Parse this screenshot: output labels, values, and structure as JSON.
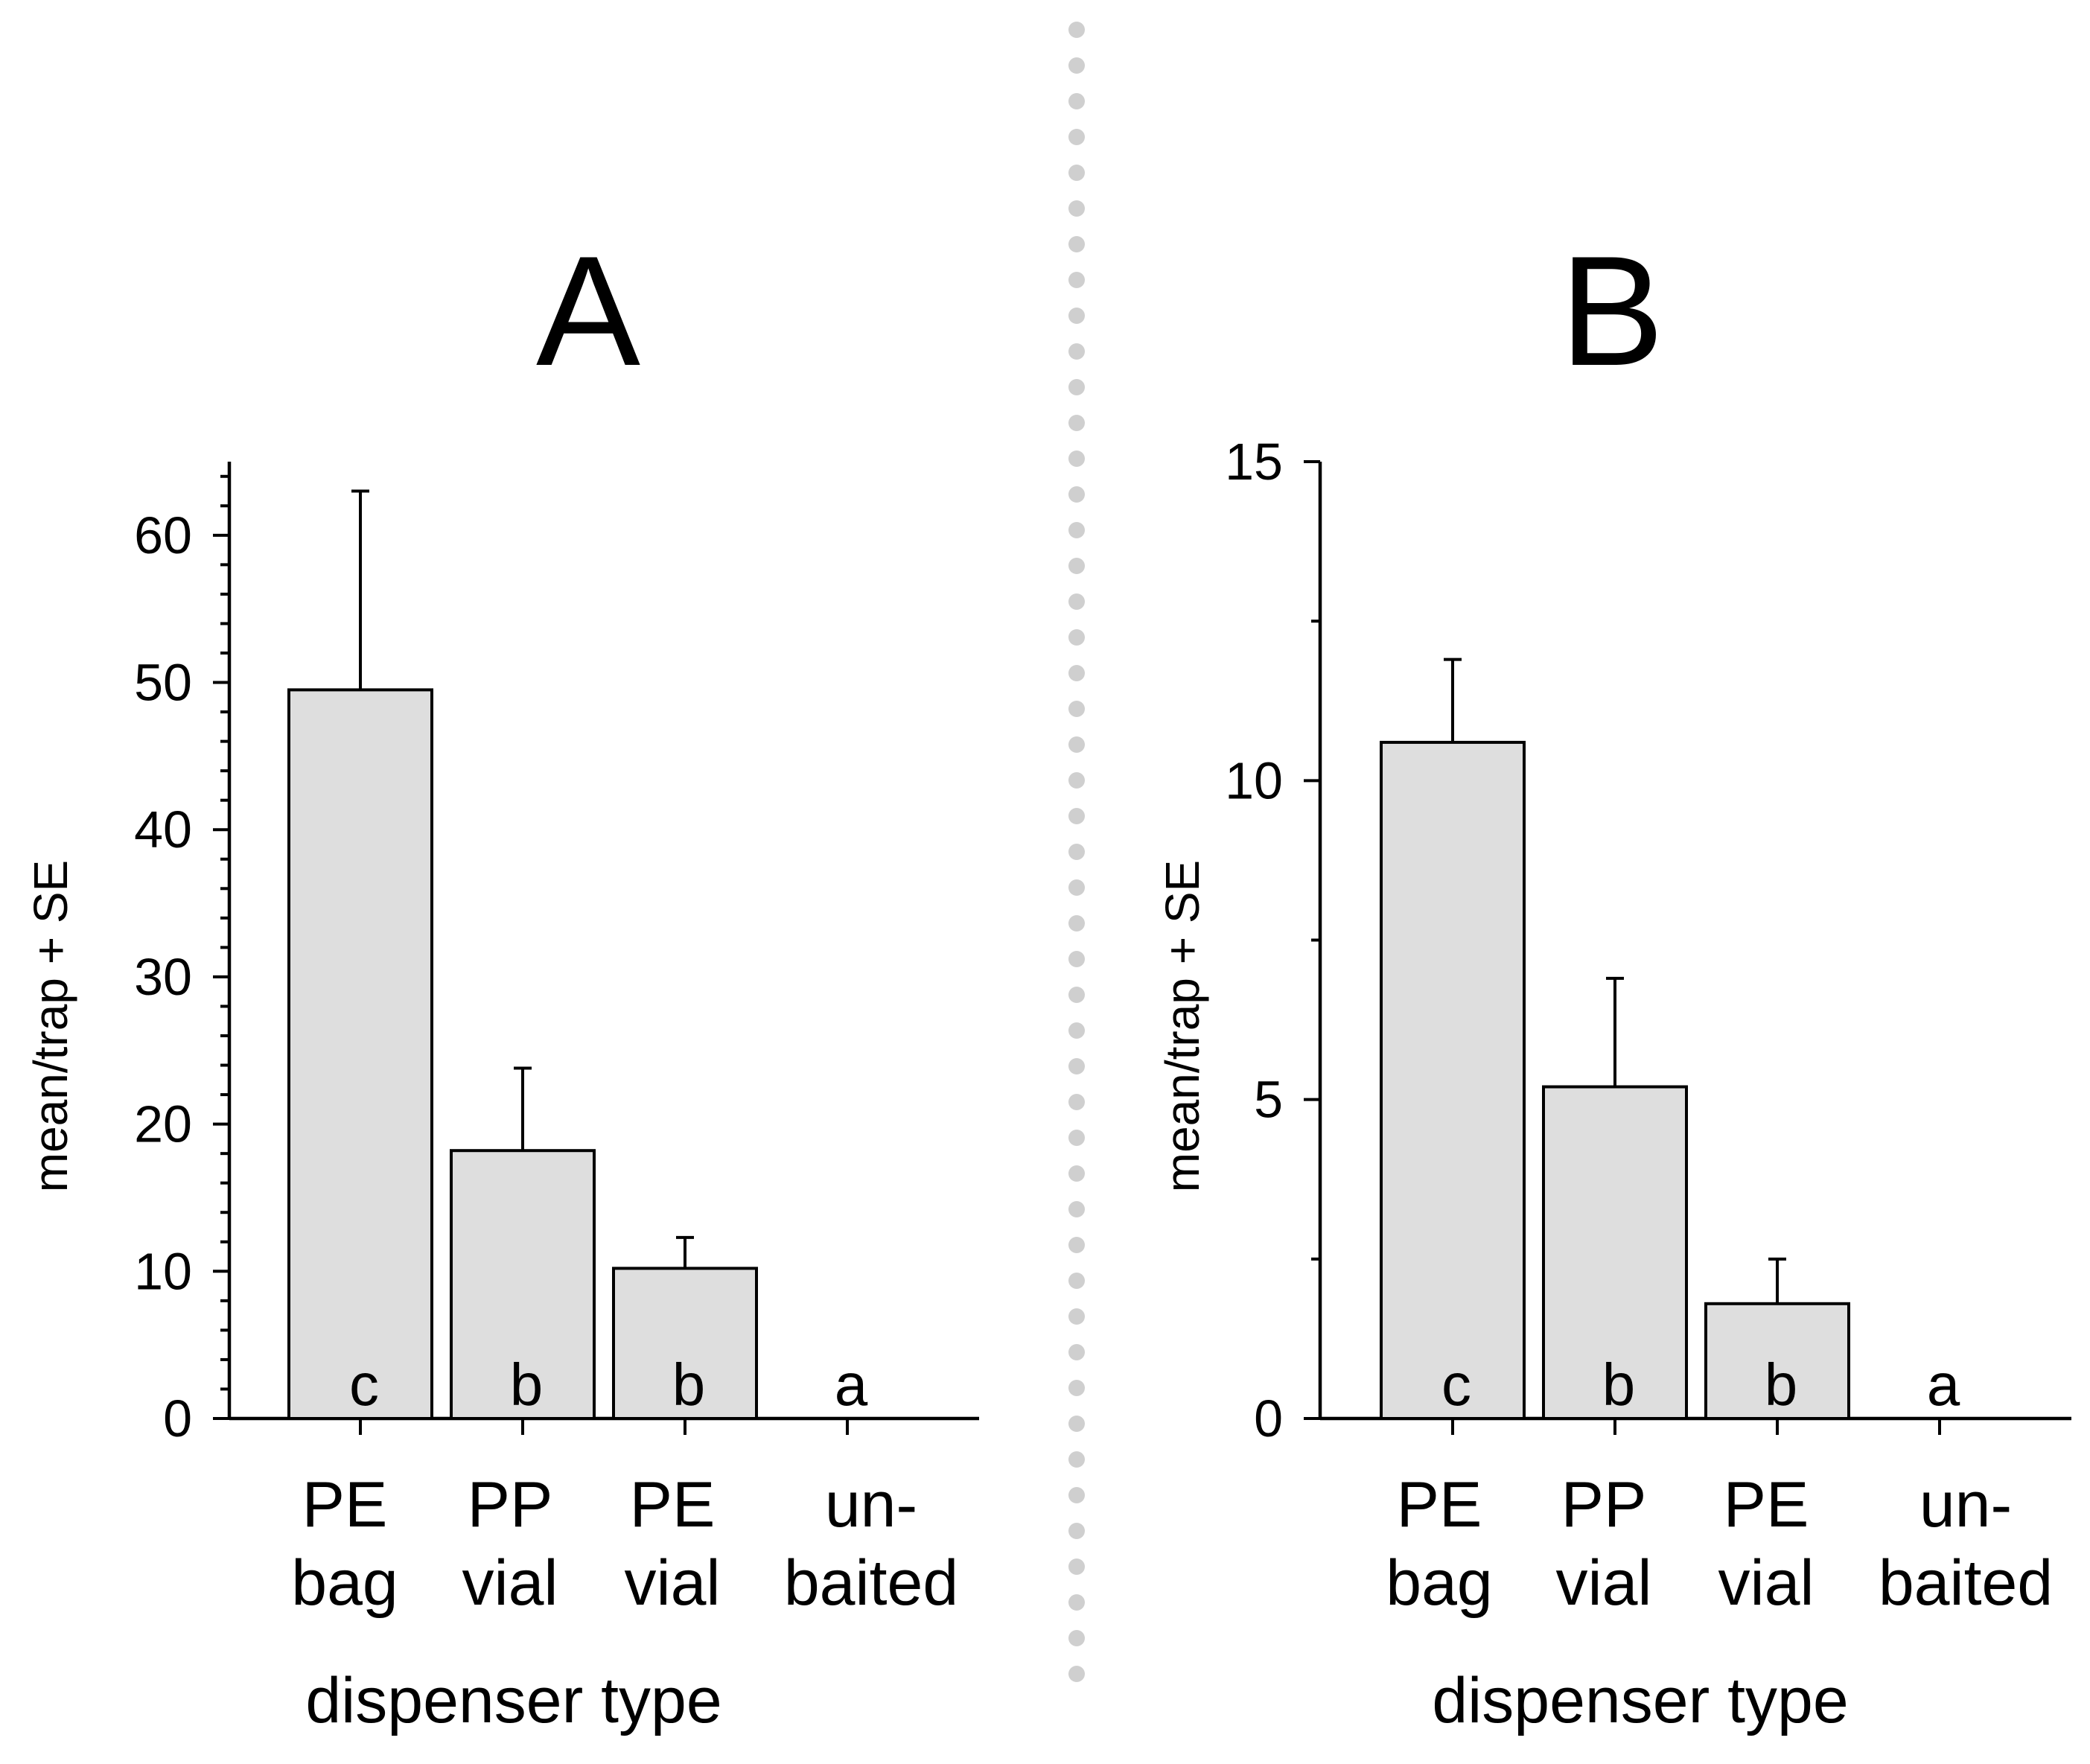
{
  "chart_data": [
    {
      "type": "bar",
      "title": "A",
      "xlabel": "dispenser type",
      "ylabel": "mean/trap + SE",
      "ylim": [
        0,
        65
      ],
      "yticks": [
        0,
        10,
        20,
        30,
        40,
        50,
        60
      ],
      "minor_tick_step": 2,
      "categories": [
        {
          "line1": "PE",
          "line2": "bag"
        },
        {
          "line1": "PP",
          "line2": "vial"
        },
        {
          "line1": "PE",
          "line2": "vial"
        },
        {
          "line1": "un-",
          "line2": "baited"
        }
      ],
      "values": [
        49.5,
        18.2,
        10.2,
        0
      ],
      "errors": [
        13.5,
        5.6,
        2.1,
        0
      ],
      "significance": [
        "c",
        "b",
        "b",
        "a"
      ]
    },
    {
      "type": "bar",
      "title": "B",
      "xlabel": "dispenser type",
      "ylabel": "mean/trap + SE",
      "ylim": [
        0,
        15
      ],
      "yticks": [
        0,
        5,
        10,
        15
      ],
      "minor_tick_step": 2.5,
      "categories": [
        {
          "line1": "PE",
          "line2": "bag"
        },
        {
          "line1": "PP",
          "line2": "vial"
        },
        {
          "line1": "PE",
          "line2": "vial"
        },
        {
          "line1": "un-",
          "line2": "baited"
        }
      ],
      "values": [
        10.6,
        5.2,
        1.8,
        0
      ],
      "errors": [
        1.3,
        1.7,
        0.7,
        0
      ],
      "significance": [
        "c",
        "b",
        "b",
        "a"
      ]
    }
  ]
}
